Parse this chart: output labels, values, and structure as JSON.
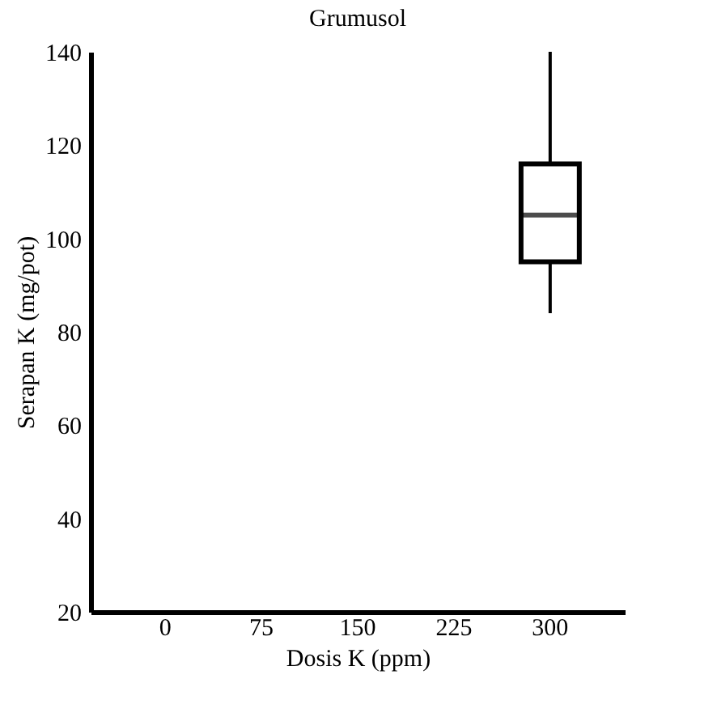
{
  "chart_data": {
    "type": "box",
    "title": "Grumusol",
    "xlabel": "Dosis K (ppm)",
    "ylabel": "Serapan K (mg/pot)",
    "categories": [
      "0",
      "75",
      "150",
      "225",
      "300"
    ],
    "boxes": [
      null,
      null,
      null,
      null,
      {
        "low": 84,
        "q1": 95,
        "median": 105,
        "q3": 116,
        "high": 140
      }
    ],
    "ylim": [
      20,
      140
    ],
    "yticks": [
      20,
      40,
      60,
      80,
      100,
      120,
      140
    ]
  }
}
